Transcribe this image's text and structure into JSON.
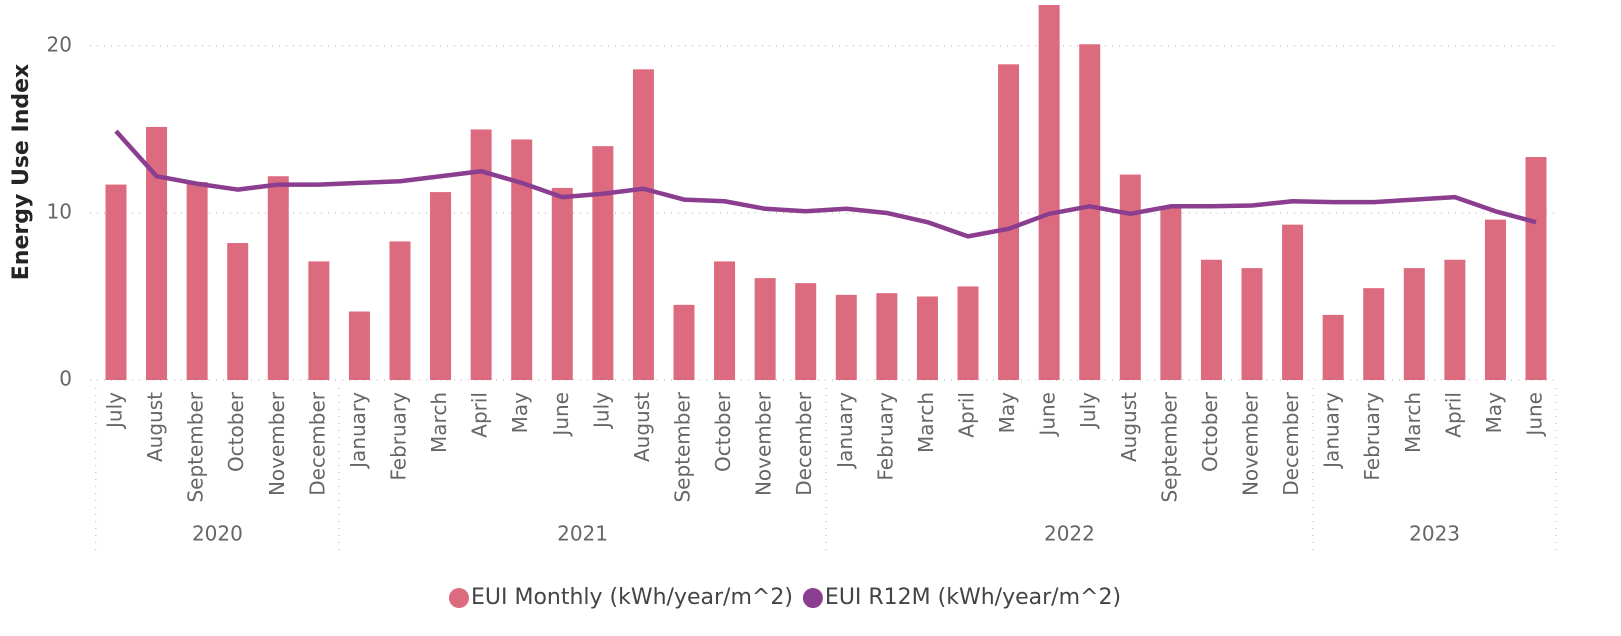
{
  "chart_data": {
    "type": "bar_line",
    "y_label": "Energy Use Index",
    "category_groups": [
      {
        "label": "2020",
        "categories": [
          "July",
          "August",
          "September",
          "October",
          "November",
          "December"
        ]
      },
      {
        "label": "2021",
        "categories": [
          "January",
          "February",
          "March",
          "April",
          "May",
          "June",
          "July",
          "August",
          "September",
          "October",
          "November",
          "December"
        ]
      },
      {
        "label": "2022",
        "categories": [
          "January",
          "February",
          "March",
          "April",
          "May",
          "June",
          "July",
          "August",
          "September",
          "October",
          "November",
          "December"
        ]
      },
      {
        "label": "2023",
        "categories": [
          "January",
          "February",
          "March",
          "April",
          "May",
          "June"
        ]
      }
    ],
    "series": [
      {
        "name": "EUI Monthly (kWh/year/m^2)",
        "type": "bar",
        "color": "#dd6b7f",
        "values": [
          11.7,
          15.15,
          11.85,
          8.2,
          12.2,
          7.1,
          4.1,
          8.3,
          11.25,
          15.0,
          14.4,
          11.5,
          14.0,
          18.6,
          4.5,
          7.1,
          6.1,
          5.8,
          5.1,
          5.2,
          5.0,
          5.6,
          18.9,
          22.45,
          20.1,
          12.3,
          10.4,
          7.2,
          6.7,
          9.3,
          3.9,
          5.5,
          6.7,
          7.2,
          9.6,
          13.35
        ]
      },
      {
        "name": "EUI R12M (kWh/year/m^2)",
        "type": "line",
        "color": "#8b3d8f",
        "values": [
          14.9,
          12.2,
          11.75,
          11.4,
          11.7,
          11.7,
          11.8,
          11.9,
          12.2,
          12.5,
          11.8,
          10.95,
          11.15,
          11.45,
          10.8,
          10.7,
          10.25,
          10.1,
          10.25,
          10.0,
          9.45,
          8.6,
          9.05,
          9.95,
          10.4,
          9.95,
          10.4,
          10.4,
          10.45,
          10.7,
          10.65,
          10.65,
          10.8,
          10.95,
          10.1,
          9.45
        ]
      }
    ],
    "ylim": [
      0,
      22.75
    ],
    "yticks": [
      0,
      10,
      20
    ],
    "grid": true,
    "legend": "bottom"
  }
}
